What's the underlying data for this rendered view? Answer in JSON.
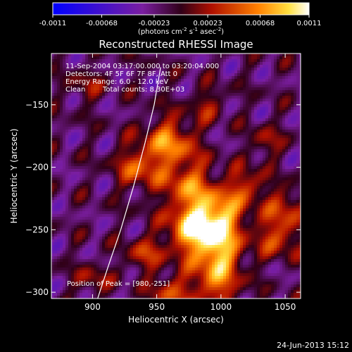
{
  "colorbar": {
    "ticks": [
      "-0.0011",
      "-0.00068",
      "-0.00023",
      "0.00023",
      "0.00068",
      "0.0011"
    ],
    "min": -0.0011,
    "max": 0.0011,
    "units_main": "(photons cm",
    "units_exp1": "-2",
    "units_mid": " s",
    "units_exp2": "-1",
    "units_asec": " asec",
    "units_exp3": "-2",
    "units_close": ")"
  },
  "chart_data": {
    "type": "heatmap",
    "title": "Reconstructed RHESSI Image",
    "xlabel": "Heliocentric X (arcsec)",
    "ylabel": "Heliocentric Y (arcsec)",
    "xlim": [
      868,
      1062
    ],
    "ylim": [
      -305,
      -109
    ],
    "xticks": [
      900,
      950,
      1000,
      1050
    ],
    "yticks": [
      -150,
      -200,
      -250,
      -300
    ],
    "color_scale": "red-temperature",
    "colors": {
      "low": "#0000ff",
      "mid": "#7a1ea0",
      "high": "#ffffff"
    },
    "annotations": [
      "11-Sep-2004 03:17:00.000 to 03:20:04.000",
      "Detectors: 4F 5F 6F 7F 8F, Att 0",
      "Energy Range: 6.0 - 12.0 keV",
      "Clean",
      "Total counts: 8.30E+03"
    ],
    "peak_label": "Position of Peak = [980,-251]",
    "peak": [
      980,
      -251
    ],
    "limb_curve": [
      [
        904,
        -305
      ],
      [
        912,
        -280
      ],
      [
        922,
        -250
      ],
      [
        932,
        -215
      ],
      [
        941,
        -180
      ],
      [
        948,
        -150
      ],
      [
        953,
        -120
      ]
    ]
  },
  "footer": {
    "timestamp": "24-Jun-2013 15:12"
  }
}
